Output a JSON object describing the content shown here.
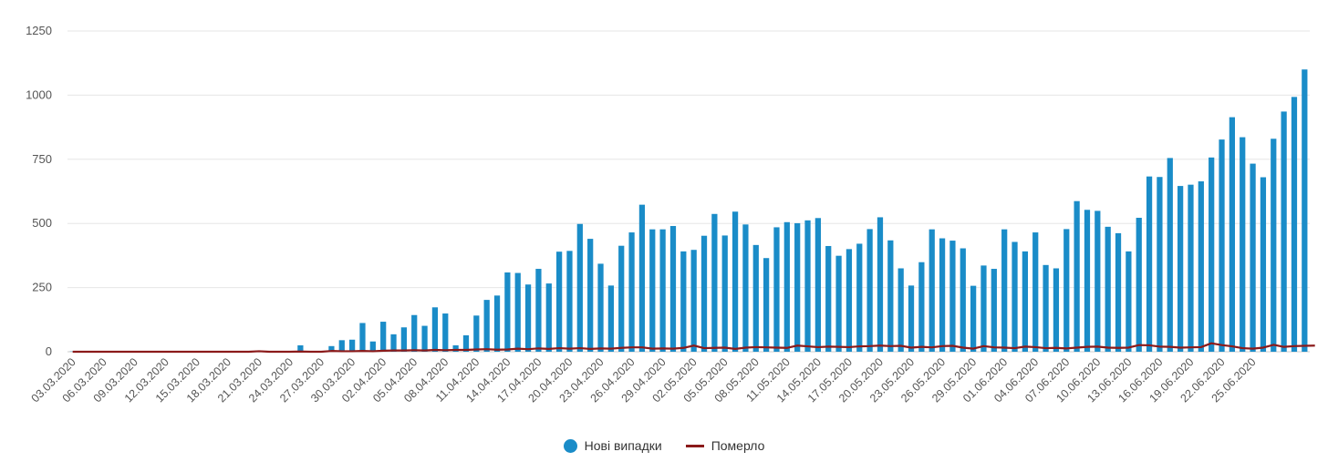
{
  "colors": {
    "bars": "#1a8cc8",
    "line": "#8b1a1a",
    "grid": "#e6e6e6",
    "axis": "#cccccc"
  },
  "legend": {
    "bars_label": "Нові випадки",
    "line_label": "Померло"
  },
  "chart_data": {
    "type": "bar",
    "ylim": [
      0,
      1250
    ],
    "yticks": [
      0,
      250,
      500,
      750,
      1000,
      1250
    ],
    "grid": true,
    "legend_position": "bottom-center",
    "x_tick_labels": [
      "03.03.2020",
      "06.03.2020",
      "09.03.2020",
      "12.03.2020",
      "15.03.2020",
      "18.03.2020",
      "21.03.2020",
      "24.03.2020",
      "27.03.2020",
      "30.03.2020",
      "02.04.2020",
      "05.04.2020",
      "08.04.2020",
      "11.04.2020",
      "14.04.2020",
      "17.04.2020",
      "20.04.2020",
      "23.04.2020",
      "26.04.2020",
      "29.04.2020",
      "02.05.2020",
      "05.05.2020",
      "08.05.2020",
      "11.05.2020",
      "14.05.2020",
      "17.05.2020",
      "20.05.2020",
      "23.05.2020",
      "26.05.2020",
      "29.05.2020",
      "01.06.2020",
      "04.06.2020",
      "07.06.2020",
      "10.06.2020",
      "13.06.2020",
      "16.06.2020",
      "19.06.2020",
      "22.06.2020",
      "25.06.2020"
    ],
    "series": [
      {
        "name": "Нові випадки",
        "type": "bar",
        "values": [
          1,
          0,
          0,
          0,
          0,
          0,
          0,
          0,
          0,
          0,
          0,
          0,
          0,
          0,
          0,
          1,
          1,
          0,
          0,
          2,
          1,
          2,
          25,
          0,
          0,
          22,
          45,
          47,
          112,
          40,
          117,
          68,
          95,
          143,
          101,
          173,
          149,
          25,
          64,
          141,
          202,
          219,
          309,
          307,
          262,
          323,
          266,
          390,
          393,
          498,
          440,
          343,
          258,
          413,
          465,
          573,
          477,
          477,
          490,
          391,
          397,
          452,
          537,
          453,
          546,
          496,
          416,
          365,
          485,
          505,
          501,
          512,
          521,
          412,
          374,
          400,
          421,
          478,
          524,
          434,
          325,
          258,
          349,
          477,
          442,
          433,
          403,
          257,
          336,
          323,
          477,
          428,
          391,
          465,
          338,
          325,
          478,
          587,
          553,
          549,
          487,
          462,
          391,
          522,
          683,
          681,
          755,
          646,
          651,
          664,
          757,
          827,
          914,
          836,
          733,
          680,
          830,
          936,
          993,
          1100
        ]
      },
      {
        "name": "Померло",
        "type": "line",
        "values": [
          0,
          0,
          0,
          0,
          0,
          0,
          0,
          0,
          0,
          0,
          0,
          0,
          0,
          0,
          0,
          0,
          0,
          0,
          2,
          0,
          0,
          0,
          1,
          0,
          0,
          3,
          2,
          2,
          3,
          2,
          4,
          5,
          5,
          6,
          5,
          7,
          6,
          7,
          7,
          9,
          10,
          8,
          9,
          12,
          10,
          13,
          11,
          14,
          12,
          14,
          11,
          13,
          12,
          15,
          17,
          17,
          12,
          13,
          12,
          15,
          24,
          14,
          15,
          16,
          11,
          16,
          18,
          17,
          16,
          15,
          24,
          21,
          18,
          20,
          19,
          18,
          21,
          22,
          24,
          22,
          23,
          16,
          19,
          17,
          22,
          23,
          16,
          12,
          22,
          17,
          16,
          14,
          20,
          18,
          14,
          15,
          13,
          16,
          19,
          20,
          16,
          15,
          16,
          26,
          25,
          20,
          19,
          16,
          17,
          18,
          33,
          26,
          21,
          14,
          12,
          16,
          27,
          19,
          22,
          23,
          24
        ]
      }
    ]
  }
}
